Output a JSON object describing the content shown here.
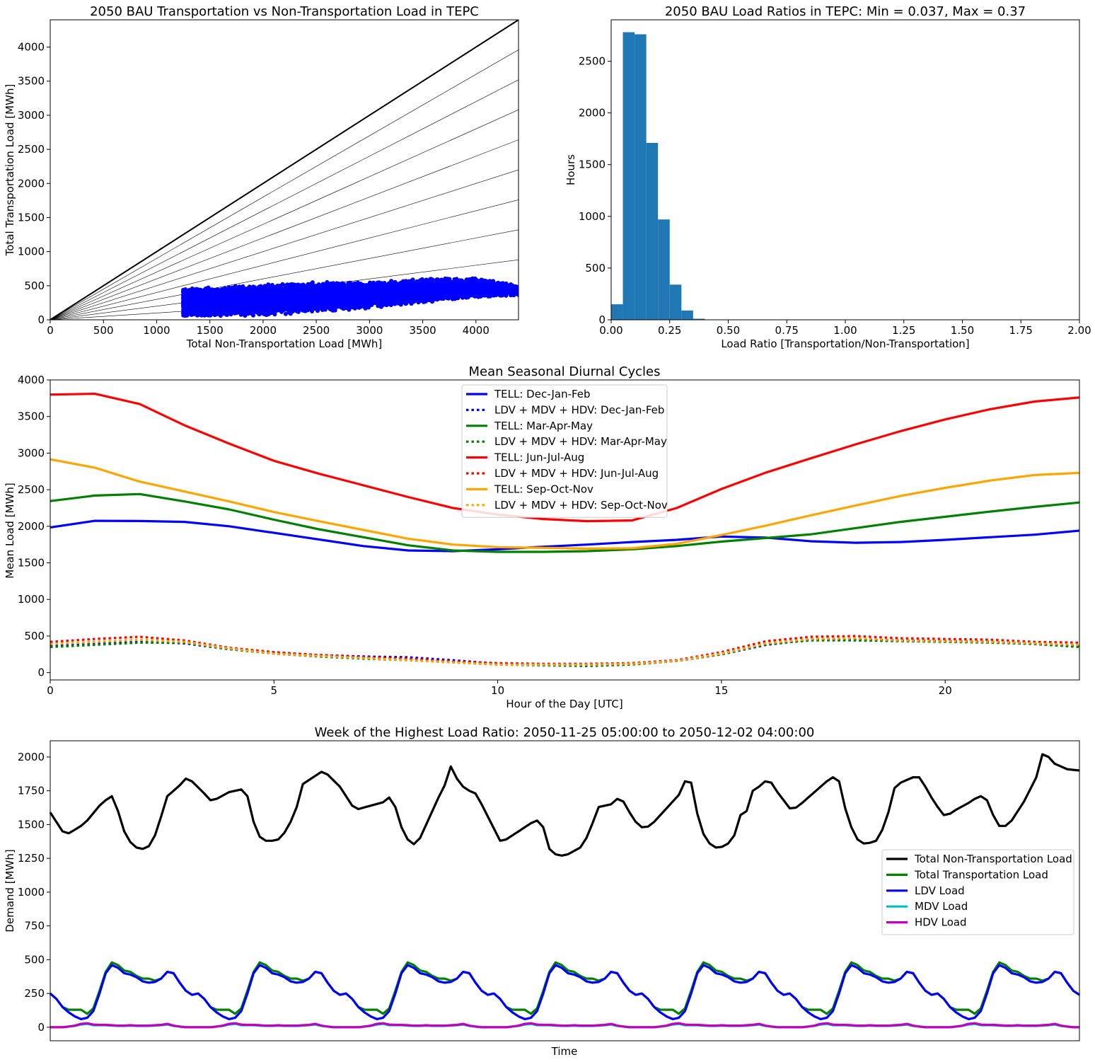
{
  "figure": {
    "background": "#ffffff"
  },
  "chart_data": [
    {
      "type": "scatter",
      "title": "2050 BAU Transportation vs Non-Transportation Load in TEPC",
      "xlabel": "Total Non-Transportation Load [MWh]",
      "ylabel": "Total Transportation Load [MWh]",
      "xlim": [
        0,
        4400
      ],
      "ylim": [
        0,
        4400
      ],
      "xticks": [
        0,
        500,
        1000,
        1500,
        2000,
        2500,
        3000,
        3500,
        4000
      ],
      "yticks": [
        0,
        500,
        1000,
        1500,
        2000,
        2500,
        3000,
        3500,
        4000
      ],
      "point_color": "#0000ff",
      "ratio_lines": [
        1.0,
        0.9,
        0.8,
        0.7,
        0.6,
        0.5,
        0.4,
        0.3,
        0.2,
        0.1
      ],
      "cloud": {
        "x_range": [
          1250,
          4400
        ],
        "y_band_low": [
          [
            1250,
            50
          ],
          [
            2000,
            60
          ],
          [
            2500,
            110
          ],
          [
            3000,
            170
          ],
          [
            3500,
            250
          ],
          [
            4000,
            320
          ],
          [
            4400,
            360
          ]
        ],
        "y_band_high": [
          [
            1250,
            460
          ],
          [
            2000,
            520
          ],
          [
            2500,
            560
          ],
          [
            3000,
            560
          ],
          [
            3500,
            600
          ],
          [
            4000,
            620
          ],
          [
            4400,
            500
          ]
        ],
        "n_points": 8760
      }
    },
    {
      "type": "bar",
      "title": "2050 BAU Load Ratios in TEPC: Min = 0.037, Max = 0.37",
      "xlabel": "Load Ratio [Transportation/Non-Transportation]",
      "ylabel": "Hours",
      "xlim": [
        0,
        2.0
      ],
      "ylim": [
        0,
        2900
      ],
      "xticks": [
        "0.00",
        "0.25",
        "0.50",
        "0.75",
        "1.00",
        "1.25",
        "1.50",
        "1.75",
        "2.00"
      ],
      "yticks": [
        0,
        500,
        1000,
        1500,
        2000,
        2500
      ],
      "bin_edges": [
        0.0,
        0.05,
        0.1,
        0.15,
        0.2,
        0.25,
        0.3,
        0.35,
        0.4
      ],
      "values": [
        150,
        2780,
        2760,
        1710,
        970,
        340,
        90,
        10
      ],
      "color": "#1f77b4"
    },
    {
      "type": "line",
      "title": "Mean Seasonal Diurnal Cycles",
      "xlabel": "Hour of the Day [UTC]",
      "ylabel": "Mean Load [MWh]",
      "xlim": [
        0,
        23
      ],
      "ylim": [
        -100,
        4000
      ],
      "xticks": [
        0,
        5,
        10,
        15,
        20
      ],
      "yticks": [
        0,
        500,
        1000,
        1500,
        2000,
        2500,
        3000,
        3500,
        4000
      ],
      "legend_position": "top-center",
      "x": [
        0,
        1,
        2,
        3,
        4,
        5,
        6,
        7,
        8,
        9,
        10,
        11,
        12,
        13,
        14,
        15,
        16,
        17,
        18,
        19,
        20,
        21,
        22,
        23
      ],
      "series": [
        {
          "name": "TELL: Dec-Jan-Feb",
          "color": "#0000ff",
          "dash": false,
          "values": [
            1985,
            2075,
            2072,
            2060,
            2000,
            1910,
            1820,
            1730,
            1670,
            1660,
            1685,
            1720,
            1750,
            1785,
            1815,
            1860,
            1845,
            1795,
            1775,
            1785,
            1815,
            1850,
            1885,
            1940
          ]
        },
        {
          "name": "LDV + MDV + HDV: Dec-Jan-Feb",
          "color": "#0000ff",
          "dash": true,
          "values": [
            370,
            390,
            420,
            400,
            320,
            270,
            240,
            220,
            210,
            170,
            120,
            110,
            110,
            120,
            160,
            250,
            380,
            450,
            450,
            440,
            430,
            420,
            390,
            360
          ]
        },
        {
          "name": "TELL: Mar-Apr-May",
          "color": "#008000",
          "dash": false,
          "values": [
            2345,
            2420,
            2440,
            2340,
            2230,
            2090,
            1960,
            1850,
            1740,
            1670,
            1650,
            1650,
            1660,
            1685,
            1730,
            1790,
            1840,
            1890,
            1975,
            2060,
            2130,
            2200,
            2265,
            2325
          ]
        },
        {
          "name": "LDV + MDV + HDV: Mar-Apr-May",
          "color": "#008000",
          "dash": true,
          "values": [
            350,
            380,
            410,
            410,
            320,
            260,
            220,
            190,
            170,
            140,
            110,
            100,
            90,
            110,
            160,
            250,
            390,
            440,
            440,
            430,
            420,
            410,
            390,
            350
          ]
        },
        {
          "name": "TELL: Jun-Jul-Aug",
          "color": "#ff0000",
          "dash": false,
          "values": [
            3800,
            3810,
            3670,
            3380,
            3130,
            2895,
            2720,
            2560,
            2400,
            2250,
            2160,
            2100,
            2070,
            2080,
            2250,
            2510,
            2735,
            2930,
            3120,
            3300,
            3460,
            3600,
            3705,
            3760
          ]
        },
        {
          "name": "LDV + MDV + HDV: Jun-Jul-Aug",
          "color": "#ff0000",
          "dash": true,
          "values": [
            420,
            460,
            490,
            440,
            340,
            280,
            240,
            210,
            190,
            150,
            130,
            120,
            120,
            130,
            170,
            280,
            430,
            490,
            500,
            470,
            460,
            450,
            420,
            410
          ]
        },
        {
          "name": "TELL: Sep-Oct-Nov",
          "color": "#ffa500",
          "dash": false,
          "values": [
            2915,
            2800,
            2610,
            2475,
            2340,
            2195,
            2070,
            1950,
            1830,
            1750,
            1715,
            1705,
            1695,
            1700,
            1760,
            1880,
            2010,
            2150,
            2285,
            2415,
            2525,
            2625,
            2700,
            2730
          ]
        },
        {
          "name": "LDV + MDV + HDV: Sep-Oct-Nov",
          "color": "#ffa500",
          "dash": true,
          "values": [
            390,
            420,
            450,
            420,
            330,
            260,
            230,
            200,
            170,
            140,
            110,
            110,
            110,
            120,
            160,
            260,
            400,
            460,
            470,
            440,
            430,
            420,
            400,
            380
          ]
        }
      ]
    },
    {
      "type": "line",
      "title": "Week of the Highest Load Ratio: 2050-11-25 05:00:00 to 2050-12-02 04:00:00",
      "xlabel": "Time",
      "ylabel": "Demand [MWh]",
      "xlim": [
        0,
        167
      ],
      "ylim": [
        -100,
        2120
      ],
      "yticks": [
        0,
        250,
        500,
        750,
        1000,
        1250,
        1500,
        1750,
        2000
      ],
      "legend_position": "center-right",
      "nontransport_keypoints": [
        [
          0,
          1590
        ],
        [
          2,
          1450
        ],
        [
          3,
          1435
        ],
        [
          5,
          1490
        ],
        [
          6,
          1530
        ],
        [
          8,
          1640
        ],
        [
          9,
          1680
        ],
        [
          10,
          1710
        ],
        [
          11,
          1600
        ],
        [
          12,
          1450
        ],
        [
          13,
          1370
        ],
        [
          14,
          1330
        ],
        [
          15,
          1320
        ],
        [
          16,
          1340
        ],
        [
          17,
          1420
        ],
        [
          18,
          1560
        ],
        [
          19,
          1710
        ],
        [
          20,
          1750
        ],
        [
          21,
          1790
        ],
        [
          22,
          1840
        ],
        [
          23,
          1820
        ],
        [
          25,
          1730
        ],
        [
          26,
          1680
        ],
        [
          27,
          1690
        ],
        [
          29,
          1740
        ],
        [
          31,
          1760
        ],
        [
          32,
          1710
        ],
        [
          33,
          1520
        ],
        [
          34,
          1410
        ],
        [
          35,
          1380
        ],
        [
          36,
          1380
        ],
        [
          37,
          1390
        ],
        [
          38,
          1440
        ],
        [
          39,
          1520
        ],
        [
          40,
          1630
        ],
        [
          41,
          1800
        ],
        [
          42,
          1830
        ],
        [
          43,
          1860
        ],
        [
          44,
          1890
        ],
        [
          45,
          1870
        ],
        [
          47,
          1780
        ],
        [
          48,
          1710
        ],
        [
          49,
          1640
        ],
        [
          50,
          1615
        ],
        [
          52,
          1640
        ],
        [
          54,
          1665
        ],
        [
          55,
          1700
        ],
        [
          56,
          1630
        ],
        [
          57,
          1480
        ],
        [
          58,
          1390
        ],
        [
          59,
          1355
        ],
        [
          60,
          1400
        ],
        [
          61,
          1500
        ],
        [
          62,
          1600
        ],
        [
          63,
          1700
        ],
        [
          64,
          1790
        ],
        [
          65,
          1930
        ],
        [
          66,
          1840
        ],
        [
          67,
          1780
        ],
        [
          68,
          1750
        ],
        [
          69,
          1730
        ],
        [
          70,
          1650
        ],
        [
          71,
          1560
        ],
        [
          72,
          1470
        ],
        [
          73,
          1380
        ],
        [
          74,
          1390
        ],
        [
          76,
          1450
        ],
        [
          77,
          1480
        ],
        [
          78,
          1510
        ],
        [
          79,
          1530
        ],
        [
          80,
          1480
        ],
        [
          81,
          1320
        ],
        [
          82,
          1280
        ],
        [
          83,
          1270
        ],
        [
          84,
          1280
        ],
        [
          85,
          1305
        ],
        [
          86,
          1330
        ],
        [
          87,
          1400
        ],
        [
          88,
          1510
        ],
        [
          89,
          1630
        ],
        [
          90,
          1640
        ],
        [
          91,
          1650
        ],
        [
          92,
          1690
        ],
        [
          93,
          1670
        ],
        [
          94,
          1590
        ],
        [
          95,
          1520
        ],
        [
          96,
          1480
        ],
        [
          97,
          1485
        ],
        [
          98,
          1520
        ],
        [
          100,
          1620
        ],
        [
          101,
          1670
        ],
        [
          102,
          1720
        ],
        [
          103,
          1820
        ],
        [
          104,
          1810
        ],
        [
          105,
          1580
        ],
        [
          106,
          1430
        ],
        [
          107,
          1360
        ],
        [
          108,
          1330
        ],
        [
          109,
          1335
        ],
        [
          110,
          1360
        ],
        [
          111,
          1420
        ],
        [
          112,
          1570
        ],
        [
          113,
          1600
        ],
        [
          114,
          1750
        ],
        [
          115,
          1780
        ],
        [
          116,
          1820
        ],
        [
          117,
          1810
        ],
        [
          118,
          1740
        ],
        [
          119,
          1680
        ],
        [
          120,
          1620
        ],
        [
          121,
          1625
        ],
        [
          122,
          1660
        ],
        [
          124,
          1740
        ],
        [
          125,
          1780
        ],
        [
          126,
          1820
        ],
        [
          127,
          1850
        ],
        [
          128,
          1820
        ],
        [
          129,
          1620
        ],
        [
          130,
          1480
        ],
        [
          131,
          1390
        ],
        [
          132,
          1360
        ],
        [
          133,
          1365
        ],
        [
          134,
          1380
        ],
        [
          135,
          1460
        ],
        [
          136,
          1590
        ],
        [
          137,
          1770
        ],
        [
          138,
          1810
        ],
        [
          139,
          1830
        ],
        [
          140,
          1850
        ],
        [
          141,
          1850
        ],
        [
          142,
          1780
        ],
        [
          143,
          1700
        ],
        [
          144,
          1630
        ],
        [
          145,
          1570
        ],
        [
          146,
          1580
        ],
        [
          147,
          1610
        ],
        [
          149,
          1660
        ],
        [
          150,
          1690
        ],
        [
          151,
          1710
        ],
        [
          152,
          1680
        ],
        [
          153,
          1570
        ],
        [
          154,
          1490
        ],
        [
          155,
          1490
        ],
        [
          156,
          1530
        ],
        [
          157,
          1600
        ],
        [
          158,
          1670
        ],
        [
          159,
          1760
        ],
        [
          160,
          1850
        ],
        [
          161,
          2020
        ],
        [
          162,
          2000
        ],
        [
          163,
          1950
        ],
        [
          165,
          1910
        ],
        [
          167,
          1900
        ]
      ],
      "day_shapes": {
        "ldv": [
          250,
          210,
          150,
          110,
          80,
          60,
          70,
          120,
          250,
          400,
          460,
          440,
          400,
          390,
          370,
          340,
          330,
          335,
          360,
          410,
          400,
          330,
          270,
          240
        ],
        "transport": [
          250,
          210,
          150,
          130,
          130,
          130,
          100,
          140,
          270,
          410,
          480,
          460,
          420,
          410,
          380,
          360,
          360,
          345,
          360,
          410,
          400,
          330,
          270,
          240
        ],
        "mdv": [
          0,
          0,
          0,
          5,
          10,
          20,
          25,
          15,
          15,
          15,
          12,
          10,
          10,
          12,
          10,
          10,
          10,
          12,
          15,
          20,
          10,
          5,
          0,
          0
        ],
        "hdv": [
          0,
          0,
          0,
          5,
          12,
          25,
          30,
          20,
          18,
          18,
          15,
          12,
          12,
          15,
          12,
          12,
          12,
          15,
          18,
          25,
          12,
          5,
          0,
          0
        ]
      },
      "series": [
        {
          "name": "Total Non-Transportation Load",
          "color": "#000000"
        },
        {
          "name": "Total Transportation Load",
          "color": "#008000"
        },
        {
          "name": "LDV Load",
          "color": "#0000ff"
        },
        {
          "name": "MDV Load",
          "color": "#00bfbf"
        },
        {
          "name": "HDV Load",
          "color": "#bf00bf"
        }
      ]
    }
  ]
}
